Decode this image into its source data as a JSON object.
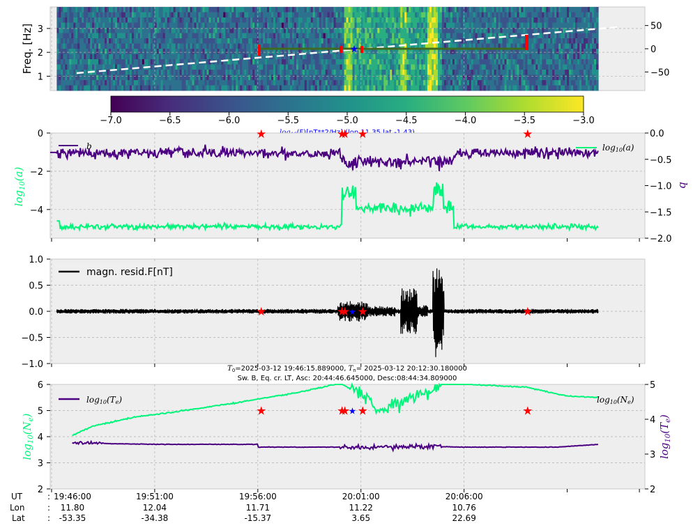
{
  "colors": {
    "green": "#00f57a",
    "purple": "#4b0082",
    "black": "#000000",
    "red": "#ff0000",
    "blue": "#0000ff",
    "trend": "#3e6b1f",
    "axes_bg": "#eeeeee"
  },
  "spectrogram": {
    "ylabel": "Freq. [Hz]",
    "y_ticks": [
      "1",
      "2",
      "3"
    ],
    "right_ticks": [
      "50",
      "0",
      "−50"
    ],
    "colormap": "viridis"
  },
  "colorbar": {
    "ticks": [
      "−7.0",
      "−6.5",
      "−6.0",
      "−5.5",
      "−5.0",
      "−4.5",
      "−4.0",
      "−3.5",
      "−3.0"
    ],
    "label": "log10(F)[nT**2/Hz] (lon 11.35 lat -1.43)",
    "label_prefix": "log",
    "label_sub": "10",
    "label_suffix": "(F)[nT**2/Hz] (lon 11.35 lat -1.43)"
  },
  "panel2": {
    "ylabel_left": "log10(a)",
    "ylabel_right": "b",
    "y_ticks_left": [
      "0",
      "−2",
      "−4"
    ],
    "y_ticks_right": [
      "0.0",
      "−0.5",
      "−1.0",
      "−1.5",
      "−2.0"
    ],
    "legend_left": "b",
    "legend_right": "log10(a)"
  },
  "panel3": {
    "y_ticks": [
      "1.0",
      "0.5",
      "0.0",
      "−0.5",
      "−1.0"
    ],
    "legend": "magn. resid.F[nT]"
  },
  "header": {
    "line1": "T0=2025-03-12 19:46:15.889000, Tn= 2025-03-12 20:12:30.180000",
    "line2": "Sw. B, Eq. cr. LT, Asc: 20:44:46.645000, Desc:08:44:34.809000"
  },
  "panel4": {
    "ylabel_left": "log10(Ne)",
    "ylabel_right": "log10(Te)",
    "y_ticks_left": [
      "6",
      "5",
      "4",
      "3",
      "2"
    ],
    "y_ticks_right": [
      "5",
      "4",
      "3",
      "2"
    ],
    "legend_left": "log10(Te)",
    "legend_right": "log10(Ne)"
  },
  "xaxis": {
    "row_labels": [
      "UT",
      "Lon",
      "Lat"
    ],
    "separator": ":",
    "ut": [
      "19:46:00",
      "19:51:00",
      "19:56:00",
      "20:01:00",
      "20:06:00"
    ],
    "lon": [
      "11.80",
      "12.04",
      "11.71",
      "11.22",
      "10.76"
    ],
    "lat": [
      "-53.35",
      "-34.38",
      "-15.37",
      "3.65",
      "22.69"
    ]
  },
  "chart_data": [
    {
      "type": "heatmap",
      "title": "",
      "ylabel": "Freq. [Hz]",
      "ylim": [
        0.4,
        3.9
      ],
      "right_ylim": [
        -90,
        90
      ],
      "x_range": [
        "19:46:15",
        "20:12:30"
      ],
      "color_range": [
        -7.0,
        -3.0
      ],
      "dashed_trend_right_axis": [
        [
          0,
          -62
        ],
        [
          1,
          58
        ]
      ],
      "markers": [
        {
          "x": "19:56:10",
          "kind": "red-star"
        },
        {
          "x": "20:00:05",
          "kind": "red-star"
        },
        {
          "x": "20:00:35",
          "kind": "blue-star"
        },
        {
          "x": "20:01:05",
          "kind": "red-star"
        },
        {
          "x": "20:09:05",
          "kind": "red-star"
        }
      ]
    },
    {
      "type": "line",
      "xlim": [
        "19:45:56",
        "20:14:46"
      ],
      "ylim_left": [
        -5.5,
        0
      ],
      "ylim_right": [
        -2.0,
        0.0
      ],
      "series": [
        {
          "name": "b",
          "axis": "right",
          "color": "#4b0082",
          "baseline": -0.35,
          "noise": 0.12
        },
        {
          "name": "log10(a)",
          "axis": "left",
          "color": "#00f57a",
          "baseline": -4.9,
          "noise": 0.15,
          "bump": {
            "from": "20:00:05",
            "to": "20:04:30",
            "level": -3.9
          }
        }
      ]
    },
    {
      "type": "line",
      "xlim": [
        "19:45:56",
        "20:14:46"
      ],
      "ylim": [
        -1.0,
        1.0
      ],
      "series": [
        {
          "name": "magn. resid.F[nT]",
          "color": "#000000",
          "amplitude": 0.05,
          "bursts": [
            {
              "at": "20:00:35",
              "amp": 0.25
            },
            {
              "at": "20:03:20",
              "amp": 0.55
            },
            {
              "at": "20:04:45",
              "amp": 1.0
            }
          ]
        }
      ]
    },
    {
      "type": "line",
      "xlim": [
        "19:45:56",
        "20:14:46"
      ],
      "ylim_left": [
        2,
        6
      ],
      "ylim_right": [
        2,
        5
      ],
      "series": [
        {
          "name": "log10(Ne)",
          "axis": "left",
          "color": "#00f57a",
          "points": [
            [
              "19:47:00",
              4.05
            ],
            [
              "19:48:00",
              4.4
            ],
            [
              "19:50:00",
              4.75
            ],
            [
              "19:52:00",
              4.95
            ],
            [
              "19:55:00",
              5.3
            ],
            [
              "19:58:00",
              5.7
            ],
            [
              "20:00:00",
              6.05
            ],
            [
              "20:01:00",
              5.6
            ],
            [
              "20:02:00",
              5.0
            ],
            [
              "20:03:00",
              5.3
            ],
            [
              "20:04:00",
              5.7
            ],
            [
              "20:05:00",
              6.05
            ],
            [
              "20:09:00",
              5.9
            ],
            [
              "20:11:00",
              5.55
            ],
            [
              "20:12:30",
              5.5
            ]
          ]
        },
        {
          "name": "log10(Te)",
          "axis": "right",
          "color": "#4b0082",
          "points": [
            [
              "19:47:00",
              3.33
            ],
            [
              "19:49:00",
              3.3
            ],
            [
              "19:51:00",
              3.28
            ],
            [
              "19:55:59",
              3.28
            ],
            [
              "19:56:01",
              3.2
            ],
            [
              "20:00:00",
              3.2
            ],
            [
              "20:01:00",
              3.2
            ],
            [
              "20:04:30",
              3.22
            ],
            [
              "20:06:00",
              3.2
            ],
            [
              "20:10:30",
              3.2
            ],
            [
              "20:12:30",
              3.28
            ]
          ]
        }
      ]
    }
  ]
}
